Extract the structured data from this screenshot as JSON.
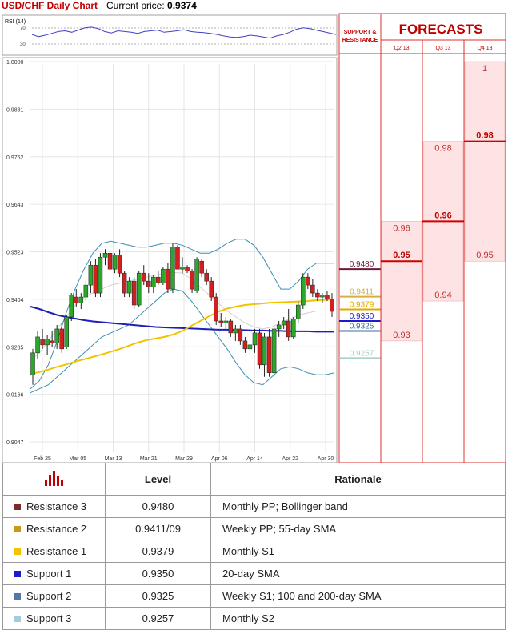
{
  "header": {
    "title": "USD/CHF Daily Chart",
    "price_label": "Current price:",
    "price_value": "0.9374"
  },
  "forecasts": {
    "title": "FORECASTS",
    "support_title_1": "SUPPORT &",
    "support_title_2": "RESISTANCE",
    "columns": [
      "Q2 13",
      "Q3 13",
      "Q4 13"
    ]
  },
  "table": {
    "level_header": "Level",
    "rationale_header": "Rationale",
    "rows": [
      {
        "name": "Resistance 3",
        "level": "0.9480",
        "rationale": "Monthly PP; Bollinger band",
        "color": "#7b2b2b"
      },
      {
        "name": "Resistance 2",
        "level": "0.9411/09",
        "rationale": "Weekly PP; 55-day SMA",
        "color": "#c89a17"
      },
      {
        "name": "Resistance 1",
        "level": "0.9379",
        "rationale": "Monthly S1",
        "color": "#f2c300"
      },
      {
        "name": "Support 1",
        "level": "0.9350",
        "rationale": "20-day SMA",
        "color": "#1a1acf"
      },
      {
        "name": "Support 2",
        "level": "0.9325",
        "rationale": "Weekly S1; 100 and 200-day SMA",
        "color": "#4f79a8"
      },
      {
        "name": "Support 3",
        "level": "0.9257",
        "rationale": "Monthly S2",
        "color": "#a9c9de"
      }
    ]
  },
  "chart_data": [
    {
      "type": "line",
      "title": "RSI (14)",
      "ylim": [
        0,
        100
      ],
      "yticks": [
        "70",
        "30"
      ],
      "values": [
        52,
        46,
        50,
        55,
        60,
        62,
        58,
        64,
        70,
        72,
        68,
        60,
        56,
        62,
        60,
        58,
        55,
        60,
        62,
        64,
        58,
        60,
        62,
        65,
        60,
        58,
        57,
        55,
        52,
        48,
        45,
        44,
        46,
        50,
        48,
        45,
        42,
        48,
        52,
        58,
        66,
        70,
        68,
        64,
        60,
        56,
        52
      ]
    },
    {
      "type": "candlestick",
      "title": "",
      "ylim": [
        0.9047,
        1.0
      ],
      "yticks": [
        "1.0000",
        "0.9881",
        "0.9762",
        "0.9643",
        "0.9523",
        "0.9404",
        "0.9285",
        "0.9166",
        "0.9047"
      ],
      "xticks": [
        "Feb 25",
        "Mar 05",
        "Mar 13",
        "Mar 21",
        "Mar 29",
        "Apr 06",
        "Apr 14",
        "Apr 22",
        "Apr 30"
      ],
      "candles": [
        [
          0.9215,
          0.928,
          0.919,
          0.927
        ],
        [
          0.927,
          0.9325,
          0.9255,
          0.931
        ],
        [
          0.9305,
          0.933,
          0.928,
          0.929
        ],
        [
          0.929,
          0.9315,
          0.9265,
          0.9305
        ],
        [
          0.93,
          0.9325,
          0.9285,
          0.9295
        ],
        [
          0.9295,
          0.934,
          0.928,
          0.933
        ],
        [
          0.933,
          0.9345,
          0.927,
          0.928
        ],
        [
          0.9285,
          0.9365,
          0.928,
          0.936
        ],
        [
          0.936,
          0.942,
          0.935,
          0.9415
        ],
        [
          0.941,
          0.943,
          0.9385,
          0.9395
        ],
        [
          0.9395,
          0.942,
          0.938,
          0.941
        ],
        [
          0.941,
          0.945,
          0.94,
          0.944
        ],
        [
          0.944,
          0.95,
          0.942,
          0.949
        ],
        [
          0.949,
          0.9505,
          0.941,
          0.942
        ],
        [
          0.942,
          0.952,
          0.941,
          0.951
        ],
        [
          0.951,
          0.953,
          0.949,
          0.952
        ],
        [
          0.952,
          0.9545,
          0.947,
          0.948
        ],
        [
          0.948,
          0.952,
          0.947,
          0.9515
        ],
        [
          0.9515,
          0.953,
          0.946,
          0.947
        ],
        [
          0.947,
          0.9475,
          0.941,
          0.942
        ],
        [
          0.942,
          0.946,
          0.941,
          0.945
        ],
        [
          0.945,
          0.946,
          0.938,
          0.939
        ],
        [
          0.939,
          0.9475,
          0.9385,
          0.947
        ],
        [
          0.947,
          0.949,
          0.944,
          0.945
        ],
        [
          0.945,
          0.947,
          0.942,
          0.9435
        ],
        [
          0.9435,
          0.9465,
          0.942,
          0.946
        ],
        [
          0.946,
          0.9475,
          0.944,
          0.9445
        ],
        [
          0.9445,
          0.9485,
          0.944,
          0.948
        ],
        [
          0.948,
          0.9495,
          0.942,
          0.943
        ],
        [
          0.943,
          0.9545,
          0.942,
          0.9535
        ],
        [
          0.9535,
          0.954,
          0.948,
          0.948
        ],
        [
          0.948,
          0.951,
          0.947,
          0.9485
        ],
        [
          0.9485,
          0.949,
          0.947,
          0.9475
        ],
        [
          0.9475,
          0.948,
          0.942,
          0.943
        ],
        [
          0.9425,
          0.951,
          0.942,
          0.9505
        ],
        [
          0.95,
          0.9505,
          0.946,
          0.947
        ],
        [
          0.947,
          0.948,
          0.944,
          0.945
        ],
        [
          0.945,
          0.946,
          0.94,
          0.941
        ],
        [
          0.941,
          0.942,
          0.934,
          0.935
        ],
        [
          0.935,
          0.937,
          0.9335,
          0.9345
        ],
        [
          0.9345,
          0.936,
          0.933,
          0.935
        ],
        [
          0.935,
          0.9355,
          0.931,
          0.932
        ],
        [
          0.932,
          0.934,
          0.93,
          0.933
        ],
        [
          0.933,
          0.934,
          0.929,
          0.93
        ],
        [
          0.93,
          0.931,
          0.927,
          0.928
        ],
        [
          0.928,
          0.93,
          0.9265,
          0.929
        ],
        [
          0.929,
          0.933,
          0.927,
          0.932
        ],
        [
          0.932,
          0.933,
          0.923,
          0.924
        ],
        [
          0.924,
          0.932,
          0.921,
          0.931
        ],
        [
          0.931,
          0.933,
          0.921,
          0.922
        ],
        [
          0.922,
          0.9335,
          0.921,
          0.933
        ],
        [
          0.933,
          0.935,
          0.931,
          0.934
        ],
        [
          0.934,
          0.936,
          0.933,
          0.935
        ],
        [
          0.935,
          0.938,
          0.93,
          0.931
        ],
        [
          0.931,
          0.936,
          0.9305,
          0.9355
        ],
        [
          0.9355,
          0.94,
          0.9345,
          0.939
        ],
        [
          0.939,
          0.947,
          0.938,
          0.946
        ],
        [
          0.946,
          0.947,
          0.943,
          0.944
        ],
        [
          0.944,
          0.9455,
          0.941,
          0.942
        ],
        [
          0.942,
          0.943,
          0.94,
          0.941
        ],
        [
          0.941,
          0.942,
          0.9395,
          0.9415
        ],
        [
          0.9415,
          0.9425,
          0.94,
          0.9405
        ],
        [
          0.9405,
          0.942,
          0.936,
          0.9374
        ]
      ],
      "series": [
        {
          "name": "",
          "color": "#1f1fb8",
          "values": [
            0.9386,
            0.938,
            0.9372,
            0.9365,
            0.936,
            0.9356,
            0.9352,
            0.9349,
            0.9347,
            0.9345,
            0.9343,
            0.9341,
            0.9339,
            0.9337,
            0.9335,
            0.9334,
            0.9333,
            0.9332,
            0.9331,
            0.933,
            0.9329,
            0.9328,
            0.9328,
            0.9327,
            0.9327,
            0.9326,
            0.9326,
            0.9325,
            0.9325,
            0.9324,
            0.9324,
            0.9324,
            0.9323,
            0.9323,
            0.9323
          ]
        },
        {
          "name": "",
          "color": "#f2c300",
          "values": [
            0.9217,
            0.9222,
            0.9228,
            0.9235,
            0.9241,
            0.9248,
            0.9254,
            0.926,
            0.9266,
            0.9273,
            0.928,
            0.9288,
            0.9296,
            0.9302,
            0.9306,
            0.931,
            0.9316,
            0.9325,
            0.9338,
            0.935,
            0.9362,
            0.9373,
            0.9381,
            0.9386,
            0.939,
            0.9392,
            0.9394,
            0.9396,
            0.9397,
            0.9398,
            0.9399,
            0.94,
            0.9402,
            0.9403,
            0.9405
          ]
        },
        {
          "name": "",
          "color": "#3e8fae",
          "values": [
            0.918,
            0.92,
            0.924,
            0.93,
            0.937,
            0.943,
            0.948,
            0.952,
            0.9545,
            0.955,
            0.9545,
            0.954,
            0.9535,
            0.9535,
            0.954,
            0.9545,
            0.9545,
            0.954,
            0.953,
            0.952,
            0.952,
            0.953,
            0.9545,
            0.9555,
            0.9555,
            0.954,
            0.951,
            0.947,
            0.943,
            0.943,
            0.945,
            0.948,
            0.9495,
            0.9495,
            0.9495
          ]
        },
        {
          "name": "",
          "color": "#3e8fae",
          "values": [
            0.917,
            0.918,
            0.919,
            0.921,
            0.923,
            0.925,
            0.927,
            0.929,
            0.931,
            0.932,
            0.933,
            0.934,
            0.936,
            0.938,
            0.94,
            0.942,
            0.943,
            0.9425,
            0.94,
            0.937,
            0.934,
            0.931,
            0.928,
            0.9245,
            0.9215,
            0.9195,
            0.919,
            0.921,
            0.923,
            0.9235,
            0.923,
            0.922,
            0.9215,
            0.9215,
            0.922
          ]
        },
        {
          "name": "",
          "color": "#d0d0d0",
          "values": [
            0.925,
            0.927,
            0.93,
            0.933,
            0.936,
            0.939,
            0.941,
            0.942,
            0.943,
            0.944,
            0.9445,
            0.945,
            0.9455,
            0.946,
            0.9465,
            0.947,
            0.9472,
            0.947,
            0.9455,
            0.9435,
            0.9415,
            0.9395,
            0.9375,
            0.936,
            0.9345,
            0.9335,
            0.933,
            0.9335,
            0.9345,
            0.9355,
            0.9365,
            0.937,
            0.9375,
            0.9375,
            0.9375
          ]
        }
      ],
      "levels": [
        {
          "label": "0.9480",
          "value": 0.948,
          "color": "#6a1a3a"
        },
        {
          "label": "0.9411",
          "value": 0.9411,
          "color": "#d4b04a"
        },
        {
          "label": "0.9379",
          "value": 0.9379,
          "color": "#e0a800"
        },
        {
          "label": "0.9350",
          "value": 0.935,
          "color": "#1a1acf"
        },
        {
          "label": "0.9325",
          "value": 0.9325,
          "color": "#3e6e9e"
        },
        {
          "label": "0.9257",
          "value": 0.9257,
          "color": "#a9d1c9"
        }
      ]
    },
    {
      "type": "bar",
      "title": "FORECASTS",
      "categories": [
        "Q2 13",
        "Q3 13",
        "Q4 13"
      ],
      "series": [
        {
          "name": "",
          "high": [
            0.96,
            0.98,
            1
          ],
          "median": [
            0.95,
            0.96,
            0.98
          ],
          "low": [
            0.93,
            0.94,
            0.95
          ]
        }
      ]
    }
  ]
}
